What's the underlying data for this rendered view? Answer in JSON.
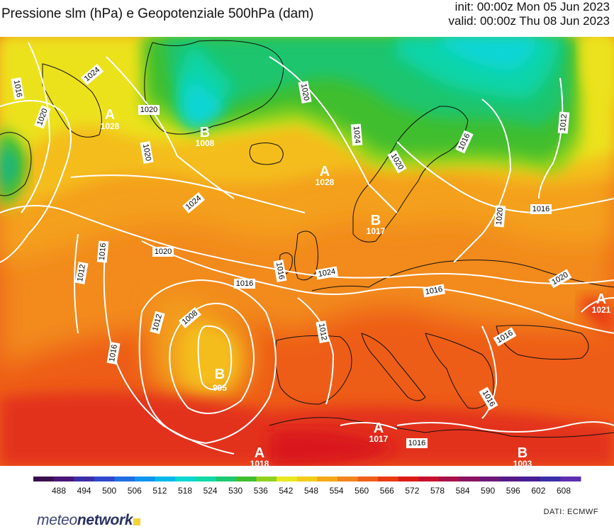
{
  "header": {
    "title": "Pressione slm (hPa) e Geopotenziale 500hPa (dam)",
    "init": "init: 00:00z Mon 05 Jun 2023",
    "valid": "valid: 00:00z Thu 08 Jun 2023"
  },
  "isobar_labels": [
    "1016",
    "1020",
    "1024",
    "1020",
    "1020",
    "1024",
    "1020",
    "1024",
    "1016",
    "1016",
    "1012",
    "1016",
    "1020",
    "1016",
    "1012",
    "1008",
    "1016",
    "1024",
    "1016",
    "1012",
    "1016",
    "1020",
    "1020",
    "1012",
    "1016",
    "1016",
    "1020",
    "1016",
    "1024",
    "1012",
    "1016"
  ],
  "pressure_centers": [
    {
      "letter": "A",
      "value": "1028"
    },
    {
      "letter": "B",
      "value": "1008"
    },
    {
      "letter": "A",
      "value": "1028"
    },
    {
      "letter": "B",
      "value": "1017"
    },
    {
      "letter": "B",
      "value": "995"
    },
    {
      "letter": "A",
      "value": "1021"
    },
    {
      "letter": "A",
      "value": "1017"
    },
    {
      "letter": "A",
      "value": "1018"
    },
    {
      "letter": "B",
      "value": "1003"
    }
  ],
  "colorbar": {
    "ticks": [
      "488",
      "494",
      "500",
      "506",
      "512",
      "518",
      "524",
      "530",
      "536",
      "542",
      "548",
      "554",
      "560",
      "566",
      "572",
      "578",
      "584",
      "590",
      "596",
      "602",
      "608"
    ],
    "colors": [
      "#3a0f4f",
      "#4a1578",
      "#3b2ea8",
      "#2f46cd",
      "#1f6fe2",
      "#0f95ee",
      "#06b9ea",
      "#09d6cf",
      "#10d8a6",
      "#1ac870",
      "#3fbf30",
      "#8fd21e",
      "#e9e81e",
      "#f2cc19",
      "#f4a818",
      "#f2841a",
      "#ef5f16",
      "#e93a12",
      "#dc1c14",
      "#c8102e",
      "#a9104a",
      "#8a1462",
      "#6e1877",
      "#561a89",
      "#461e96",
      "#3b2ea8",
      "#5e2fb0"
    ]
  },
  "footer": {
    "logo_text_a": "meteo",
    "logo_text_b": "network",
    "source": "DATI:  ECMWF"
  }
}
